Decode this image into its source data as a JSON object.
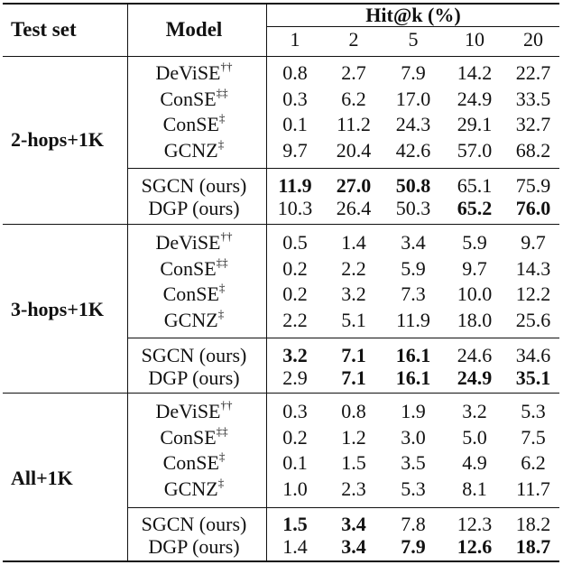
{
  "header": {
    "test_set": "Test set",
    "model": "Model",
    "hit_k": "Hit@k (%)",
    "k_values": [
      "1",
      "2",
      "5",
      "10",
      "20"
    ]
  },
  "groups": [
    {
      "name": "2-hops+1K",
      "rows": [
        {
          "model": "DeViSE",
          "sup": "††",
          "values": [
            "0.8",
            "2.7",
            "7.9",
            "14.2",
            "22.7"
          ],
          "bold": [
            false,
            false,
            false,
            false,
            false
          ]
        },
        {
          "model": "ConSE",
          "sup": "‡‡",
          "values": [
            "0.3",
            "6.2",
            "17.0",
            "24.9",
            "33.5"
          ],
          "bold": [
            false,
            false,
            false,
            false,
            false
          ]
        },
        {
          "model": "ConSE",
          "sup": "‡",
          "values": [
            "0.1",
            "11.2",
            "24.3",
            "29.1",
            "32.7"
          ],
          "bold": [
            false,
            false,
            false,
            false,
            false
          ]
        },
        {
          "model": "GCNZ",
          "sup": "‡",
          "values": [
            "9.7",
            "20.4",
            "42.6",
            "57.0",
            "68.2"
          ],
          "bold": [
            false,
            false,
            false,
            false,
            false
          ]
        },
        {
          "model": "SGCN (ours)",
          "sup": "",
          "values": [
            "11.9",
            "27.0",
            "50.8",
            "65.1",
            "75.9"
          ],
          "bold": [
            true,
            true,
            true,
            false,
            false
          ]
        },
        {
          "model": "DGP (ours)",
          "sup": "",
          "values": [
            "10.3",
            "26.4",
            "50.3",
            "65.2",
            "76.0"
          ],
          "bold": [
            false,
            false,
            false,
            true,
            true
          ]
        }
      ]
    },
    {
      "name": "3-hops+1K",
      "rows": [
        {
          "model": "DeViSE",
          "sup": "††",
          "values": [
            "0.5",
            "1.4",
            "3.4",
            "5.9",
            "9.7"
          ],
          "bold": [
            false,
            false,
            false,
            false,
            false
          ]
        },
        {
          "model": "ConSE",
          "sup": "‡‡",
          "values": [
            "0.2",
            "2.2",
            "5.9",
            "9.7",
            "14.3"
          ],
          "bold": [
            false,
            false,
            false,
            false,
            false
          ]
        },
        {
          "model": "ConSE",
          "sup": "‡",
          "values": [
            "0.2",
            "3.2",
            "7.3",
            "10.0",
            "12.2"
          ],
          "bold": [
            false,
            false,
            false,
            false,
            false
          ]
        },
        {
          "model": "GCNZ",
          "sup": "‡",
          "values": [
            "2.2",
            "5.1",
            "11.9",
            "18.0",
            "25.6"
          ],
          "bold": [
            false,
            false,
            false,
            false,
            false
          ]
        },
        {
          "model": "SGCN (ours)",
          "sup": "",
          "values": [
            "3.2",
            "7.1",
            "16.1",
            "24.6",
            "34.6"
          ],
          "bold": [
            true,
            true,
            true,
            false,
            false
          ]
        },
        {
          "model": "DGP (ours)",
          "sup": "",
          "values": [
            "2.9",
            "7.1",
            "16.1",
            "24.9",
            "35.1"
          ],
          "bold": [
            false,
            true,
            true,
            true,
            true
          ]
        }
      ]
    },
    {
      "name": "All+1K",
      "rows": [
        {
          "model": "DeViSE",
          "sup": "††",
          "values": [
            "0.3",
            "0.8",
            "1.9",
            "3.2",
            "5.3"
          ],
          "bold": [
            false,
            false,
            false,
            false,
            false
          ]
        },
        {
          "model": "ConSE",
          "sup": "‡‡",
          "values": [
            "0.2",
            "1.2",
            "3.0",
            "5.0",
            "7.5"
          ],
          "bold": [
            false,
            false,
            false,
            false,
            false
          ]
        },
        {
          "model": "ConSE",
          "sup": "‡",
          "values": [
            "0.1",
            "1.5",
            "3.5",
            "4.9",
            "6.2"
          ],
          "bold": [
            false,
            false,
            false,
            false,
            false
          ]
        },
        {
          "model": "GCNZ",
          "sup": "‡",
          "values": [
            "1.0",
            "2.3",
            "5.3",
            "8.1",
            "11.7"
          ],
          "bold": [
            false,
            false,
            false,
            false,
            false
          ]
        },
        {
          "model": "SGCN (ours)",
          "sup": "",
          "values": [
            "1.5",
            "3.4",
            "7.8",
            "12.3",
            "18.2"
          ],
          "bold": [
            true,
            true,
            false,
            false,
            false
          ]
        },
        {
          "model": "DGP (ours)",
          "sup": "",
          "values": [
            "1.4",
            "3.4",
            "7.9",
            "12.6",
            "18.7"
          ],
          "bold": [
            false,
            true,
            true,
            true,
            true
          ]
        }
      ]
    }
  ]
}
